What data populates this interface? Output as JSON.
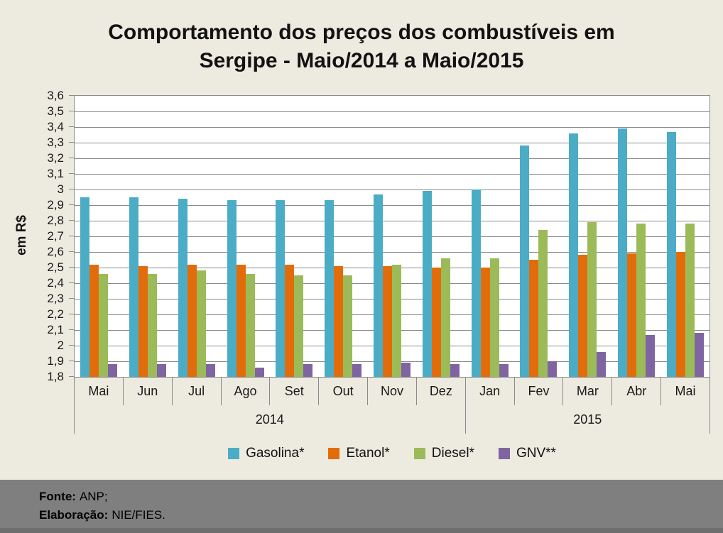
{
  "title": {
    "line1": "Comportamento dos preços dos combustíveis em",
    "line2": "Sergipe - Maio/2014 a Maio/2015"
  },
  "chart_data": {
    "type": "bar",
    "title": "Comportamento dos preços dos combustíveis em Sergipe - Maio/2014 a Maio/2015",
    "xlabel": "",
    "ylabel": "em R$",
    "ylim": [
      1.8,
      3.6
    ],
    "ytick_step": 0.1,
    "ytick_labels_top_down": [
      "3,6",
      "3,5",
      "3,4",
      "3,3",
      "3,2",
      "3,1",
      "3",
      "2,9",
      "2,8",
      "2,7",
      "2,6",
      "2,5",
      "2,4",
      "2,3",
      "2,2",
      "2,1",
      "2",
      "1,9",
      "1,8"
    ],
    "grid": true,
    "legend_position": "bottom",
    "categories": [
      "Mai",
      "Jun",
      "Jul",
      "Ago",
      "Set",
      "Out",
      "Nov",
      "Dez",
      "Jan",
      "Fev",
      "Mar",
      "Abr",
      "Mai"
    ],
    "year_groups": [
      {
        "label": "2014",
        "span": 8
      },
      {
        "label": "2015",
        "span": 5
      }
    ],
    "series": [
      {
        "name": "Gasolina*",
        "color": "#4BACC6",
        "values": [
          2.95,
          2.95,
          2.94,
          2.93,
          2.93,
          2.93,
          2.97,
          2.99,
          3.0,
          3.28,
          3.36,
          3.39,
          3.37
        ]
      },
      {
        "name": "Etanol*",
        "color": "#E36C0A",
        "values": [
          2.52,
          2.51,
          2.52,
          2.52,
          2.52,
          2.51,
          2.51,
          2.5,
          2.5,
          2.55,
          2.58,
          2.59,
          2.6
        ]
      },
      {
        "name": "Diesel*",
        "color": "#9BBB59",
        "values": [
          2.46,
          2.46,
          2.48,
          2.46,
          2.45,
          2.45,
          2.52,
          2.56,
          2.56,
          2.74,
          2.79,
          2.78,
          2.78
        ]
      },
      {
        "name": "GNV**",
        "color": "#8064A2",
        "values": [
          1.88,
          1.88,
          1.88,
          1.86,
          1.88,
          1.88,
          1.89,
          1.88,
          1.88,
          1.9,
          1.96,
          2.07,
          2.08
        ]
      }
    ]
  },
  "footer": {
    "line1_label": "Fonte:",
    "line1_value": "ANP;",
    "line2_label": "Elaboração:",
    "line2_value": "NIE/FIES."
  },
  "colors": {
    "page_background": "#EDEAE0",
    "plot_background": "#FFFFFF",
    "gridline": "#8A8A8A",
    "footer_band": "#7F7F7F",
    "footer_band_edge": "#6E6E6E"
  }
}
